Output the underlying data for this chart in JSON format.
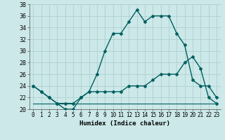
{
  "xlabel": "Humidex (Indice chaleur)",
  "xlim": [
    -0.5,
    23.5
  ],
  "ylim": [
    20,
    38
  ],
  "xticks": [
    0,
    1,
    2,
    3,
    4,
    5,
    6,
    7,
    8,
    9,
    10,
    11,
    12,
    13,
    14,
    15,
    16,
    17,
    18,
    19,
    20,
    21,
    22,
    23
  ],
  "yticks": [
    20,
    22,
    24,
    26,
    28,
    30,
    32,
    34,
    36,
    38
  ],
  "bg_color": "#cce8e8",
  "grid_color": "#b0d0d0",
  "line_color": "#006060",
  "line1_y": [
    24,
    23,
    22,
    21,
    20,
    20,
    22,
    23,
    26,
    30,
    33,
    33,
    35,
    37,
    35,
    36,
    36,
    36,
    33,
    31,
    25,
    24,
    24,
    22
  ],
  "line2_y": [
    24,
    23,
    22,
    21,
    21,
    21,
    22,
    23,
    23,
    23,
    23,
    23,
    24,
    24,
    24,
    25,
    26,
    26,
    26,
    28,
    29,
    27,
    22,
    21
  ],
  "line3_y": [
    21,
    21,
    21,
    21,
    21,
    21,
    21,
    21,
    21,
    21,
    21,
    21,
    21,
    21,
    21,
    21,
    21,
    21,
    21,
    21,
    21,
    21,
    21,
    21
  ]
}
